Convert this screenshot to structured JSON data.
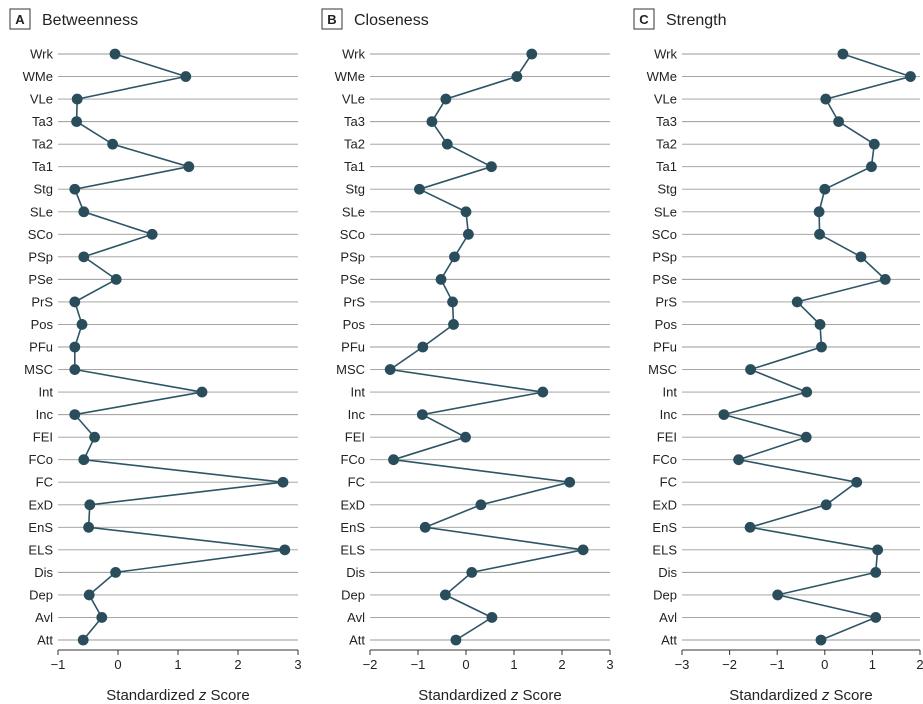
{
  "chart_data": [
    {
      "type": "line",
      "panel_letter": "A",
      "title": "Betweenness",
      "xlabel_prefix": "Standardized ",
      "xlabel_var": "z",
      "xlabel_suffix": " Score",
      "xlim": [
        -1,
        3
      ],
      "xticks": [
        -1,
        0,
        1,
        2,
        3
      ],
      "xtick_labels": [
        "−1",
        "0",
        "1",
        "2",
        "3"
      ],
      "grid": true,
      "categories": [
        "Wrk",
        "WMe",
        "VLe",
        "Ta3",
        "Ta2",
        "Ta1",
        "Stg",
        "SLe",
        "SCo",
        "PSp",
        "PSe",
        "PrS",
        "Pos",
        "PFu",
        "MSC",
        "Int",
        "Inc",
        "FEI",
        "FCo",
        "FC",
        "ExD",
        "EnS",
        "ELS",
        "Dis",
        "Dep",
        "Avl",
        "Att"
      ],
      "values": [
        -0.05,
        1.13,
        -0.68,
        -0.69,
        -0.09,
        1.18,
        -0.72,
        -0.57,
        0.57,
        -0.57,
        -0.03,
        -0.72,
        -0.6,
        -0.72,
        -0.72,
        1.4,
        -0.72,
        -0.39,
        -0.57,
        2.75,
        -0.47,
        -0.49,
        2.78,
        -0.04,
        -0.48,
        -0.27,
        -0.58
      ]
    },
    {
      "type": "line",
      "panel_letter": "B",
      "title": "Closeness",
      "xlabel_prefix": "Standardized ",
      "xlabel_var": "z",
      "xlabel_suffix": " Score",
      "xlim": [
        -2,
        3
      ],
      "xticks": [
        -2,
        -1,
        0,
        1,
        2,
        3
      ],
      "xtick_labels": [
        "−2",
        "−1",
        "0",
        "1",
        "2",
        "3"
      ],
      "grid": true,
      "categories": [
        "Wrk",
        "WMe",
        "VLe",
        "Ta3",
        "Ta2",
        "Ta1",
        "Stg",
        "SLe",
        "SCo",
        "PSp",
        "PSe",
        "PrS",
        "Pos",
        "PFu",
        "MSC",
        "Int",
        "Inc",
        "FEI",
        "FCo",
        "FC",
        "ExD",
        "EnS",
        "ELS",
        "Dis",
        "Dep",
        "Avl",
        "Att"
      ],
      "values": [
        1.37,
        1.06,
        -0.42,
        -0.71,
        -0.39,
        0.53,
        -0.97,
        0.0,
        0.05,
        -0.24,
        -0.52,
        -0.28,
        -0.26,
        -0.9,
        -1.58,
        1.6,
        -0.91,
        -0.01,
        -1.51,
        2.16,
        0.31,
        -0.85,
        2.44,
        0.12,
        -0.43,
        0.54,
        -0.21
      ]
    },
    {
      "type": "line",
      "panel_letter": "C",
      "title": "Strength",
      "xlabel_prefix": "Standardized ",
      "xlabel_var": "z",
      "xlabel_suffix": " Score",
      "xlim": [
        -3,
        2
      ],
      "xticks": [
        -3,
        -2,
        -1,
        0,
        1,
        2
      ],
      "xtick_labels": [
        "−3",
        "−2",
        "−1",
        "0",
        "1",
        "2"
      ],
      "grid": true,
      "categories": [
        "Wrk",
        "WMe",
        "VLe",
        "Ta3",
        "Ta2",
        "Ta1",
        "Stg",
        "SLe",
        "SCo",
        "PSp",
        "PSe",
        "PrS",
        "Pos",
        "PFu",
        "MSC",
        "Int",
        "Inc",
        "FEI",
        "FCo",
        "FC",
        "ExD",
        "EnS",
        "ELS",
        "Dis",
        "Dep",
        "Avl",
        "Att"
      ],
      "values": [
        0.38,
        1.8,
        0.02,
        0.29,
        1.04,
        0.98,
        0.0,
        -0.12,
        -0.11,
        0.76,
        1.27,
        -0.58,
        -0.1,
        -0.07,
        -1.56,
        -0.38,
        -2.12,
        -0.39,
        -1.81,
        0.67,
        0.03,
        -1.57,
        1.11,
        1.07,
        -0.99,
        1.07,
        -0.08
      ]
    }
  ]
}
